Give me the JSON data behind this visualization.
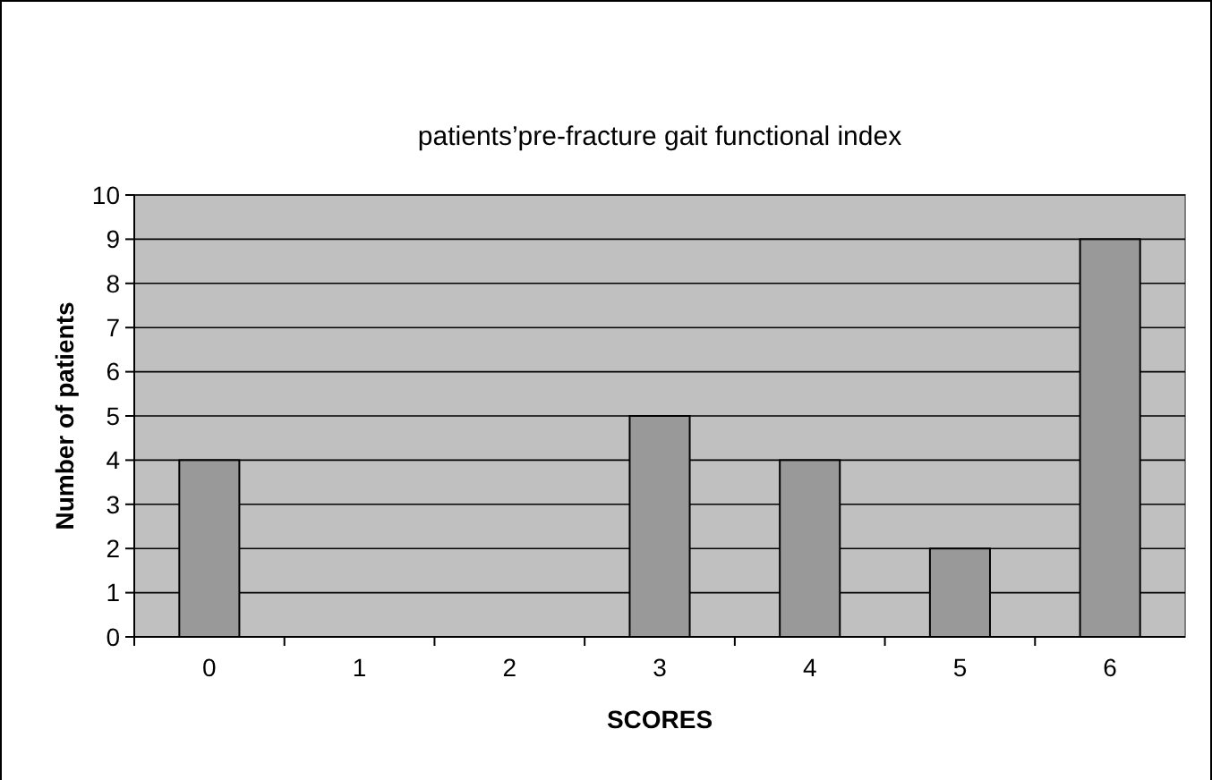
{
  "chart_data": {
    "type": "bar",
    "title": "patients’pre-fracture gait functional index",
    "xlabel": "SCORES",
    "ylabel": "Number of patients",
    "categories": [
      "0",
      "1",
      "2",
      "3",
      "4",
      "5",
      "6"
    ],
    "values": [
      4,
      0,
      0,
      5,
      4,
      2,
      9
    ],
    "color": "#999999",
    "ylim": [
      0,
      10
    ],
    "yticks": [
      0,
      1,
      2,
      3,
      4,
      5,
      6,
      7,
      8,
      9,
      10
    ],
    "grid": "y"
  }
}
